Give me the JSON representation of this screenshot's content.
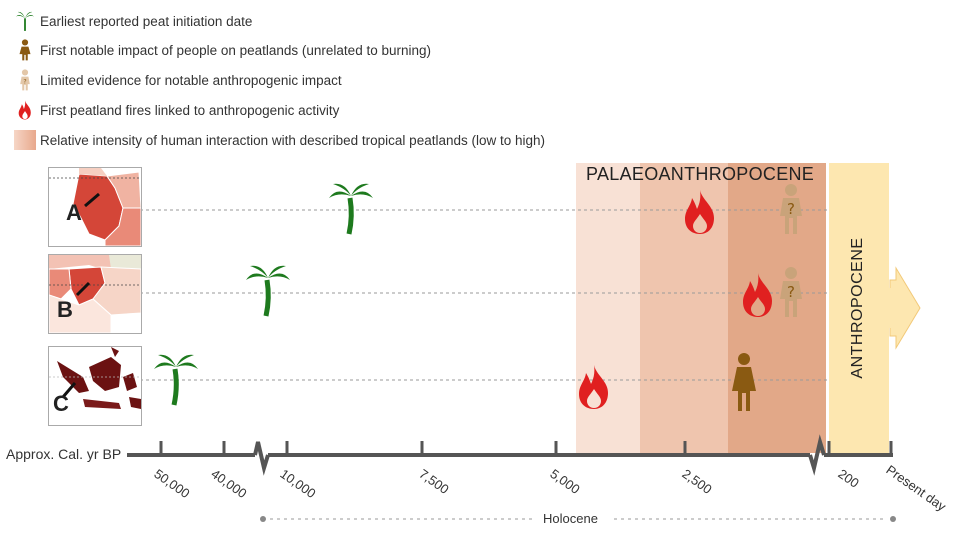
{
  "legend": [
    {
      "icon": "palm-tree-icon",
      "label": "Earliest reported peat initiation date",
      "color": "#1e7a1e"
    },
    {
      "icon": "person-icon",
      "label": "First notable impact of people on peatlands (unrelated to burning)",
      "color": "#8a5a12"
    },
    {
      "icon": "person-question-icon",
      "label": "Limited evidence for notable anthropogenic impact",
      "color": "#c9a37a"
    },
    {
      "icon": "fire-icon",
      "label": "First peatland fires linked to anthropogenic activity",
      "color": "#e02020"
    },
    {
      "icon": "gradient-swatch-icon",
      "label": "Relative intensity of human interaction with described tropical peatlands (low to high)",
      "color": "#e8a88c"
    }
  ],
  "regions": [
    {
      "letter": "A"
    },
    {
      "letter": "B"
    },
    {
      "letter": "C"
    }
  ],
  "eras": {
    "palaeo": "PALAEOANTHROPOCENE",
    "anthro": "ANTHROPOCENE",
    "holocene": "Holocene"
  },
  "axis": {
    "label": "Approx. Cal. yr BP",
    "ticks": [
      "50,000",
      "40,000",
      "10,000",
      "7,500",
      "5,000",
      "2,500",
      "200",
      "Present day"
    ]
  },
  "colors": {
    "palm": "#1e7a1e",
    "fire": "#e02020",
    "person": "#8a5a12",
    "person_uncertain": "#c9a37a",
    "intensity_low": "#f8e1d5",
    "intensity_mid": "#efc5ae",
    "intensity_high": "#e2a888",
    "anthropocene": "#fde7b0"
  }
}
